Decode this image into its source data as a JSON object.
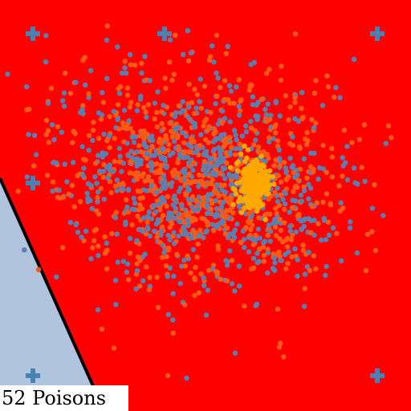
{
  "caption": "52 Poisons",
  "colors": {
    "region_attacked": "#ff0000",
    "region_clean": "#b0c4de",
    "boundary": "#000000",
    "points_class_a": "#5b80b0",
    "points_class_b": "#ff5a14",
    "points_poison": "#ffa800",
    "markers": "#4682b4"
  },
  "icons": [
    "plus-marker"
  ]
}
